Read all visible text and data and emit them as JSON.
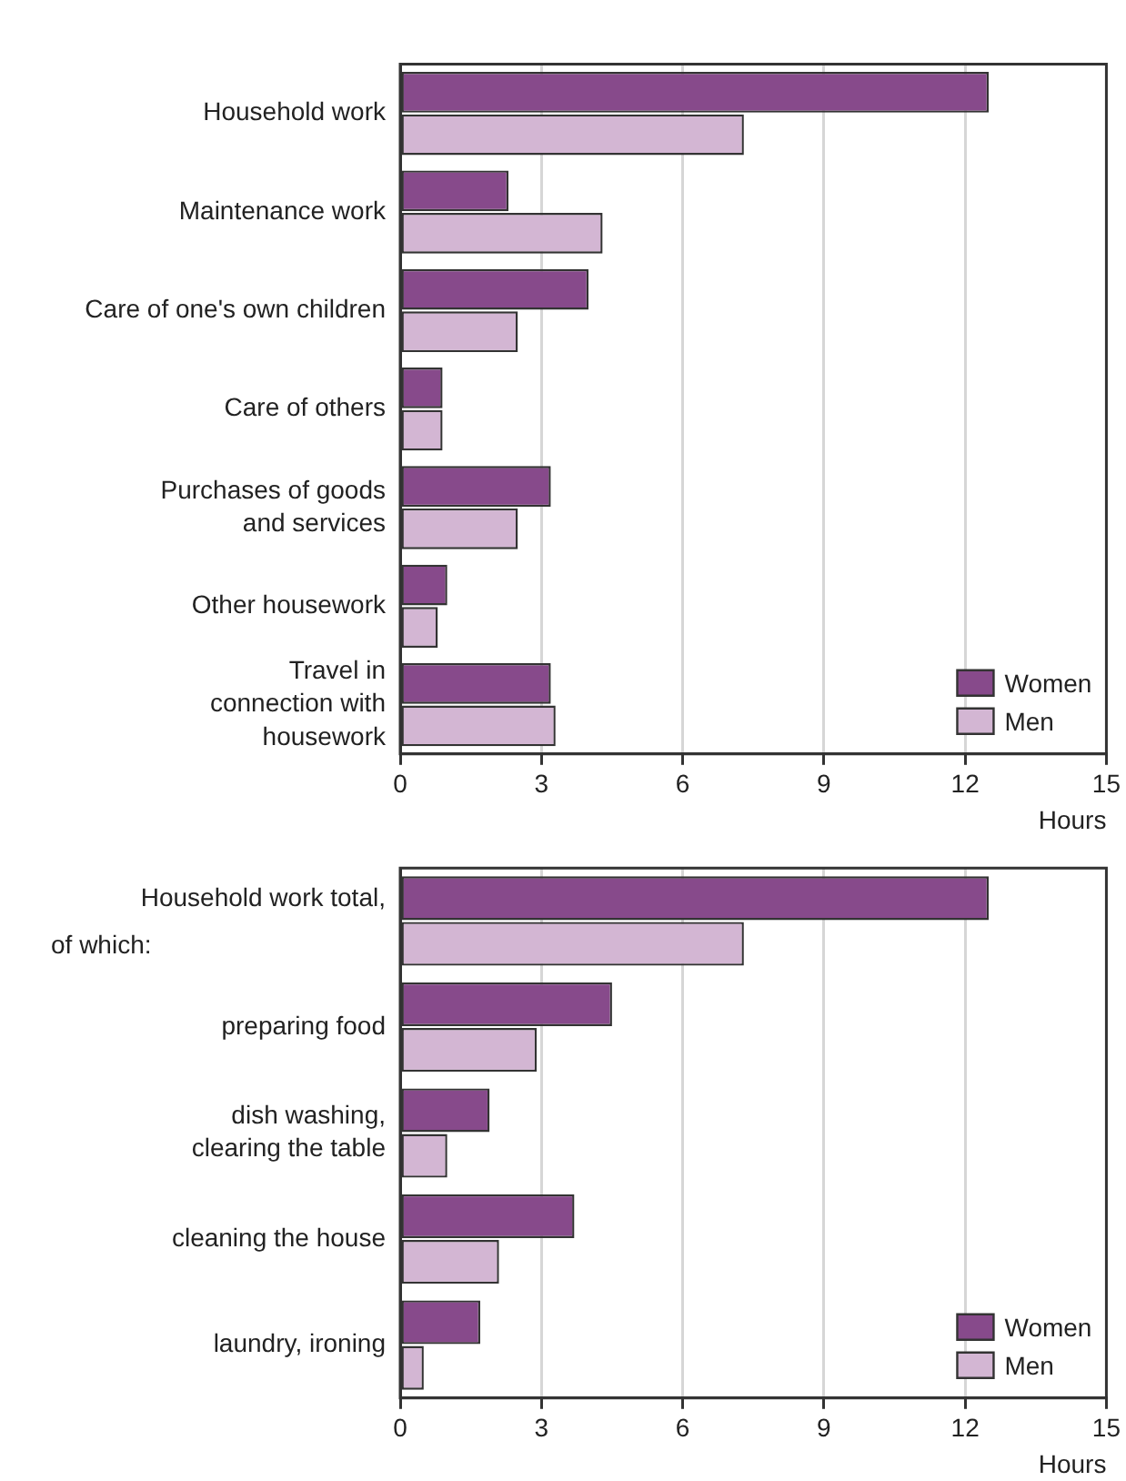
{
  "chart_data": [
    {
      "type": "bar",
      "orientation": "horizontal",
      "categories": [
        "Household work",
        "Maintenance work",
        "Care of one's own children",
        "Care of others",
        "Purchases of goods\nand services",
        "Other housework",
        "Travel in\nconnection with\nhousework"
      ],
      "series": [
        {
          "name": "Women",
          "color": "#874a8b",
          "values": [
            12.5,
            2.3,
            4.0,
            0.9,
            3.2,
            1.0,
            3.2
          ]
        },
        {
          "name": "Men",
          "color": "#d3b6d3",
          "values": [
            7.3,
            4.3,
            2.5,
            0.9,
            2.5,
            0.8,
            3.3
          ]
        }
      ],
      "xlim": [
        0,
        15
      ],
      "xticks": [
        0,
        3,
        6,
        9,
        12,
        15
      ],
      "xlabel": "Hours",
      "grid": "x",
      "legend": "bottom right"
    },
    {
      "type": "bar",
      "orientation": "horizontal",
      "annotations": [
        "Household work total,",
        "of which:"
      ],
      "categories": [
        null,
        "preparing food",
        "dish washing,\nclearing the table",
        "cleaning the house",
        "laundry, ironing"
      ],
      "series": [
        {
          "name": "Women",
          "color": "#874a8b",
          "values": [
            12.5,
            4.5,
            1.9,
            3.7,
            1.7
          ]
        },
        {
          "name": "Men",
          "color": "#d3b6d3",
          "values": [
            7.3,
            2.9,
            1.0,
            2.1,
            0.5
          ]
        }
      ],
      "xlim": [
        0,
        15
      ],
      "xticks": [
        0,
        3,
        6,
        9,
        12,
        15
      ],
      "xlabel": "Hours",
      "grid": "x",
      "legend": "bottom right"
    }
  ]
}
